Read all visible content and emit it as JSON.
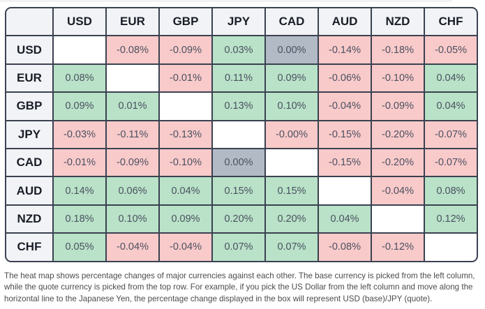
{
  "chart_data": {
    "type": "heatmap",
    "x_categories": [
      "USD",
      "EUR",
      "GBP",
      "JPY",
      "CAD",
      "AUD",
      "NZD",
      "CHF"
    ],
    "y_categories": [
      "USD",
      "EUR",
      "GBP",
      "JPY",
      "CAD",
      "AUD",
      "NZD",
      "CHF"
    ],
    "value_unit": "percent change, base (row) vs quote (column)",
    "rows": [
      {
        "base": "USD",
        "labels": [
          "",
          "-0.08%",
          "-0.09%",
          "0.03%",
          "0.00%",
          "-0.14%",
          "-0.18%",
          "-0.05%"
        ],
        "values": [
          null,
          -0.08,
          -0.09,
          0.03,
          0.0,
          -0.14,
          -0.18,
          -0.05
        ],
        "types": [
          "self",
          "neg",
          "neg",
          "pos",
          "zero",
          "neg",
          "neg",
          "neg"
        ]
      },
      {
        "base": "EUR",
        "labels": [
          "0.08%",
          "",
          "-0.01%",
          "0.11%",
          "0.09%",
          "-0.06%",
          "-0.10%",
          "0.04%"
        ],
        "values": [
          0.08,
          null,
          -0.01,
          0.11,
          0.09,
          -0.06,
          -0.1,
          0.04
        ],
        "types": [
          "pos",
          "self",
          "neg",
          "pos",
          "pos",
          "neg",
          "neg",
          "pos"
        ]
      },
      {
        "base": "GBP",
        "labels": [
          "0.09%",
          "0.01%",
          "",
          "0.13%",
          "0.10%",
          "-0.04%",
          "-0.09%",
          "0.04%"
        ],
        "values": [
          0.09,
          0.01,
          null,
          0.13,
          0.1,
          -0.04,
          -0.09,
          0.04
        ],
        "types": [
          "pos",
          "pos",
          "self",
          "pos",
          "pos",
          "neg",
          "neg",
          "pos"
        ]
      },
      {
        "base": "JPY",
        "labels": [
          "-0.03%",
          "-0.11%",
          "-0.13%",
          "",
          "-0.00%",
          "-0.15%",
          "-0.20%",
          "-0.07%"
        ],
        "values": [
          -0.03,
          -0.11,
          -0.13,
          null,
          -0.0,
          -0.15,
          -0.2,
          -0.07
        ],
        "types": [
          "neg",
          "neg",
          "neg",
          "self",
          "neg",
          "neg",
          "neg",
          "neg"
        ]
      },
      {
        "base": "CAD",
        "labels": [
          "-0.01%",
          "-0.09%",
          "-0.10%",
          "0.00%",
          "",
          "-0.15%",
          "-0.20%",
          "-0.07%"
        ],
        "values": [
          -0.01,
          -0.09,
          -0.1,
          0.0,
          null,
          -0.15,
          -0.2,
          -0.07
        ],
        "types": [
          "neg",
          "neg",
          "neg",
          "zero",
          "self",
          "neg",
          "neg",
          "neg"
        ]
      },
      {
        "base": "AUD",
        "labels": [
          "0.14%",
          "0.06%",
          "0.04%",
          "0.15%",
          "0.15%",
          "",
          "-0.04%",
          "0.08%"
        ],
        "values": [
          0.14,
          0.06,
          0.04,
          0.15,
          0.15,
          null,
          -0.04,
          0.08
        ],
        "types": [
          "pos",
          "pos",
          "pos",
          "pos",
          "pos",
          "self",
          "neg",
          "pos"
        ]
      },
      {
        "base": "NZD",
        "labels": [
          "0.18%",
          "0.10%",
          "0.09%",
          "0.20%",
          "0.20%",
          "0.04%",
          "",
          "0.12%"
        ],
        "values": [
          0.18,
          0.1,
          0.09,
          0.2,
          0.2,
          0.04,
          null,
          0.12
        ],
        "types": [
          "pos",
          "pos",
          "pos",
          "pos",
          "pos",
          "pos",
          "self",
          "pos"
        ]
      },
      {
        "base": "CHF",
        "labels": [
          "0.05%",
          "-0.04%",
          "-0.04%",
          "0.07%",
          "0.07%",
          "-0.08%",
          "-0.12%",
          ""
        ],
        "values": [
          0.05,
          -0.04,
          -0.04,
          0.07,
          0.07,
          -0.08,
          -0.12,
          null
        ],
        "types": [
          "pos",
          "neg",
          "neg",
          "pos",
          "pos",
          "neg",
          "neg",
          "self"
        ]
      }
    ],
    "cell_colors": {
      "pos": "#b9e2c8",
      "neg": "#f9caca",
      "zero": "#b2bac6",
      "self": "#ffffff"
    },
    "grid": true,
    "legend_position": "none",
    "title": ""
  },
  "colors": {
    "grid_border": "#3a4150",
    "header_bg": "#f2f3f6",
    "header_text": "#181d27",
    "cell_text": "#4a5160",
    "footer_text": "#4b4b4b",
    "positive_bg": "#b9e2c8",
    "negative_bg": "#f9caca",
    "zero_bg": "#b2bac6"
  },
  "footer": {
    "text": "The heat map shows percentage changes of major currencies against each other. The base currency is picked from the left column, while the quote currency is picked from the top row. For example, if you pick the US Dollar from the left column and move along the horizontal line to the Japanese Yen, the percentage change displayed in the box will represent USD (base)/JPY (quote)."
  }
}
